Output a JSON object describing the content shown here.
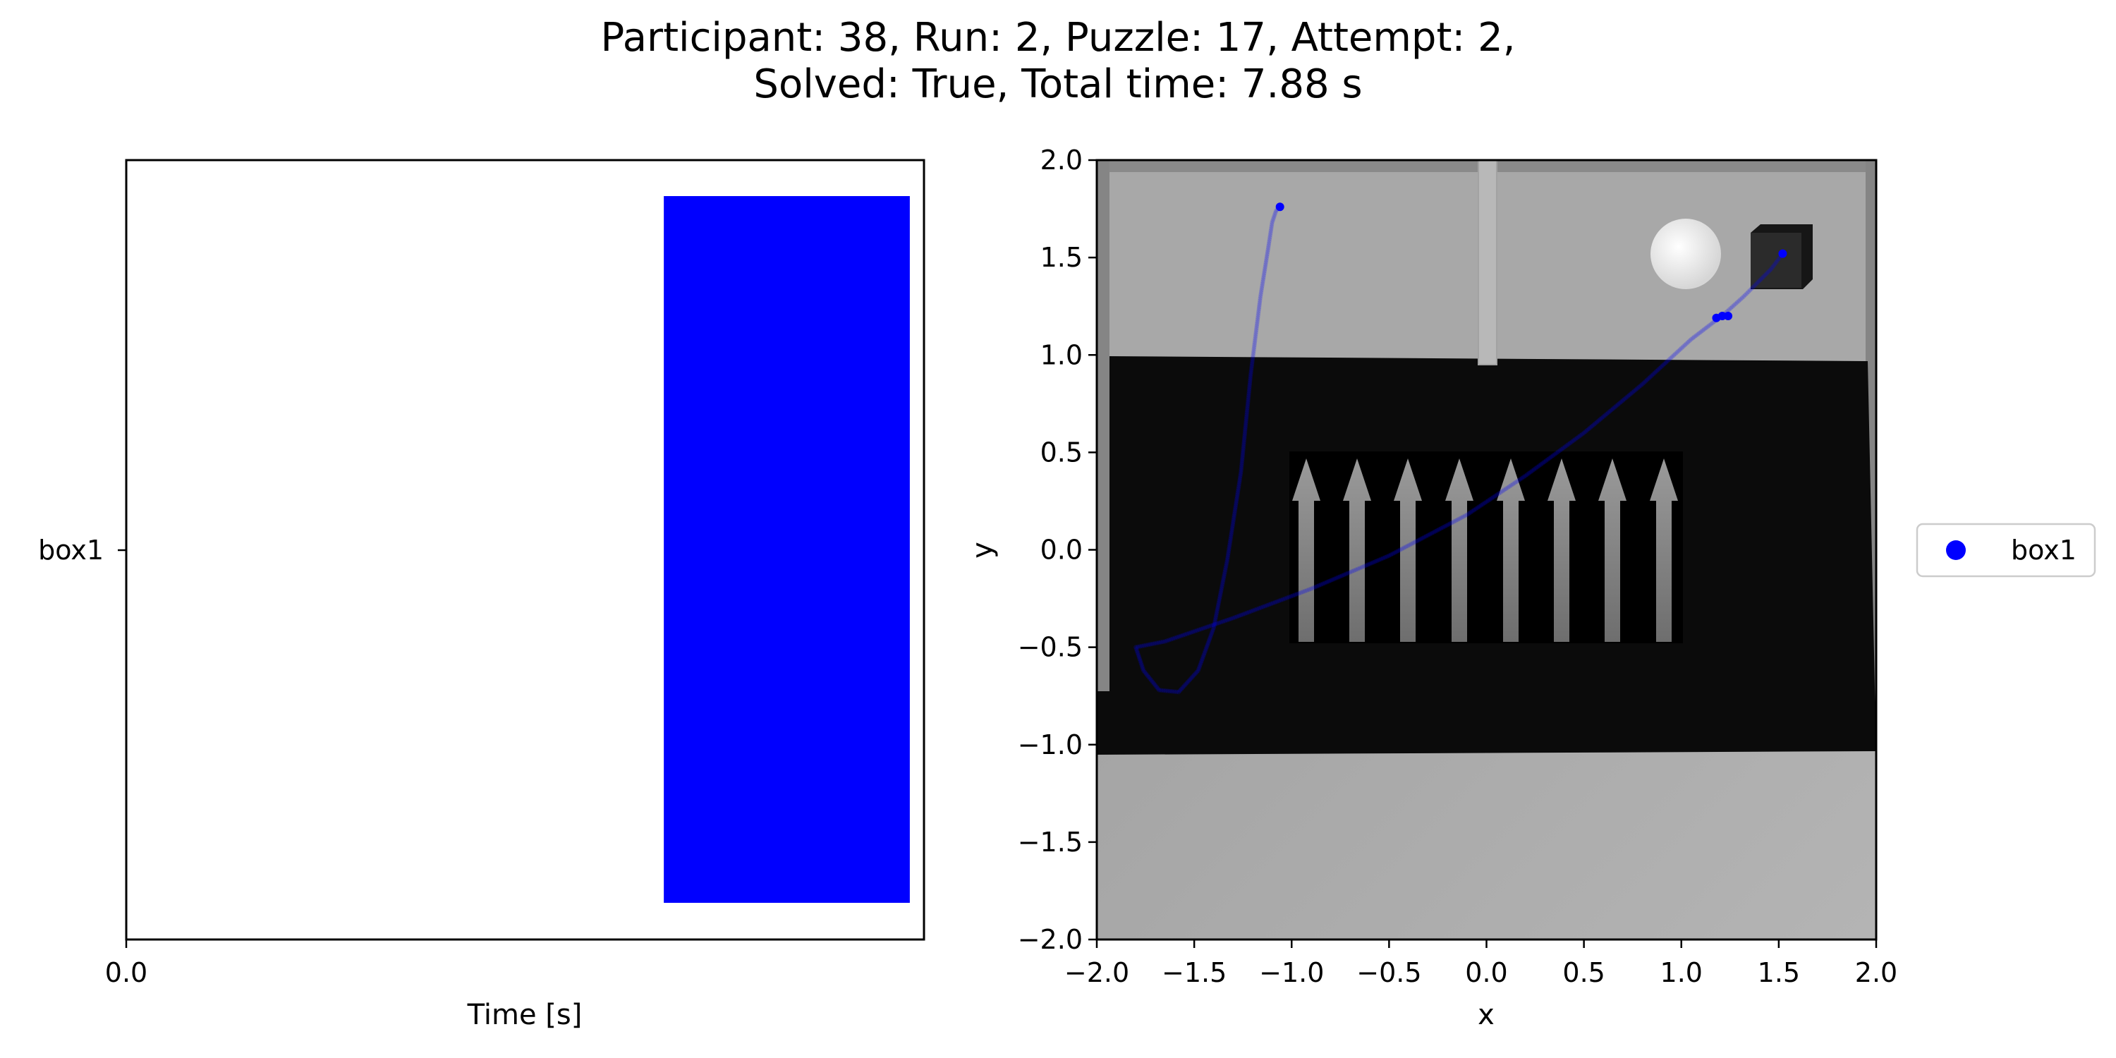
{
  "figure": {
    "title_line1": "Participant: 38, Run: 2, Puzzle: 17, Attempt: 2,",
    "title_line2": "Solved: True, Total time: 7.88 s"
  },
  "chart_data": [
    {
      "type": "bar",
      "orientation": "horizontal",
      "xlabel": "Time [s]",
      "ylabel": "",
      "xticks": [
        "0.0"
      ],
      "yticks": [
        "box1"
      ],
      "categories": [
        "box1"
      ],
      "series": [
        {
          "name": "box1",
          "color": "#0000ff",
          "intervals": [
            [
              5.31,
              7.74
            ]
          ]
        }
      ],
      "xlim": [
        0,
        7.88
      ],
      "grid": false
    },
    {
      "type": "scatter",
      "xlabel": "x",
      "ylabel": "y",
      "xlim": [
        -2.0,
        2.0
      ],
      "ylim": [
        -2.0,
        2.0
      ],
      "xticks": [
        "−2.0",
        "−1.5",
        "−1.0",
        "−0.5",
        "0.0",
        "0.5",
        "1.0",
        "1.5",
        "2.0"
      ],
      "yticks": [
        "2.0",
        "1.5",
        "1.0",
        "0.5",
        "0.0",
        "−0.5",
        "−1.0",
        "−1.5",
        "−2.0"
      ],
      "grid": false,
      "legend": {
        "placement": "right",
        "entries": [
          "box1"
        ]
      },
      "background": "top-down render of puzzle scene: grey floor, dark mat with white up-arrows, white disc and dark box at top-right",
      "series": [
        {
          "name": "box1",
          "color": "#0000ff",
          "x": [
            1.52,
            1.46,
            1.4,
            1.32,
            1.22,
            1.05,
            0.8,
            0.5,
            0.2,
            -0.1,
            -0.5,
            -0.9,
            -1.3,
            -1.65,
            -1.8,
            -1.76,
            -1.68,
            -1.58,
            -1.48,
            -1.4,
            -1.33,
            -1.26,
            -1.21,
            -1.16,
            -1.12,
            -1.1,
            -1.08,
            -1.06
          ],
          "y": [
            1.52,
            1.44,
            1.38,
            1.3,
            1.21,
            1.08,
            0.85,
            0.6,
            0.38,
            0.18,
            -0.03,
            -0.2,
            -0.35,
            -0.47,
            -0.5,
            -0.62,
            -0.72,
            -0.73,
            -0.62,
            -0.4,
            -0.05,
            0.4,
            0.9,
            1.3,
            1.55,
            1.68,
            1.74,
            1.76
          ]
        }
      ]
    }
  ]
}
